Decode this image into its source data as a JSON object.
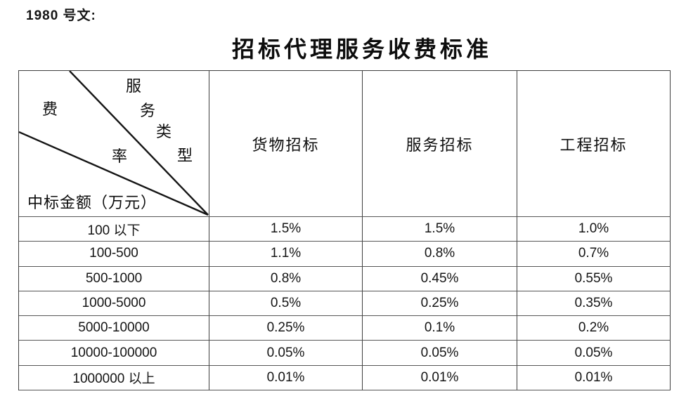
{
  "doc_ref": "1980 号文:",
  "title": "招标代理服务收费标准",
  "table": {
    "corner": {
      "fee_rate_chars": [
        "费",
        "率"
      ],
      "service_type_chars": [
        "服",
        "务",
        "类",
        "型"
      ],
      "amount_label": "中标金额（万元）"
    },
    "columns": [
      "货物招标",
      "服务招标",
      "工程招标"
    ],
    "rows": [
      {
        "range": "100 以下",
        "values": [
          "1.5%",
          "1.5%",
          "1.0%"
        ]
      },
      {
        "range": "100-500",
        "values": [
          "1.1%",
          "0.8%",
          "0.7%"
        ]
      },
      {
        "range": "500-1000",
        "values": [
          "0.8%",
          "0.45%",
          "0.55%"
        ]
      },
      {
        "range": "1000-5000",
        "values": [
          "0.5%",
          "0.25%",
          "0.35%"
        ]
      },
      {
        "range": "5000-10000",
        "values": [
          "0.25%",
          "0.1%",
          "0.2%"
        ]
      },
      {
        "range": "10000-100000",
        "values": [
          "0.05%",
          "0.05%",
          "0.05%"
        ]
      },
      {
        "range": "1000000 以上",
        "values": [
          "0.01%",
          "0.01%",
          "0.01%"
        ]
      }
    ]
  },
  "colors": {
    "border": "#3f3f3f",
    "diagonal_line": "#151515",
    "text": "#141414",
    "background": "#ffffff"
  }
}
